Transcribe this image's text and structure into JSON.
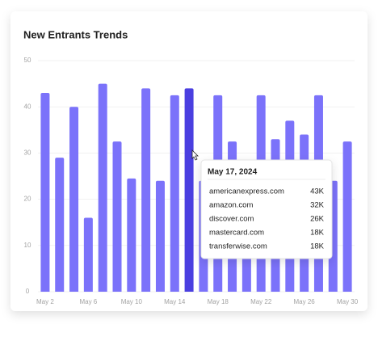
{
  "chart_data": {
    "type": "bar",
    "title": "New Entrants Trends",
    "categories": [
      "May 2",
      null,
      null,
      "May 6",
      null,
      null,
      "May 10",
      null,
      null,
      "May 14",
      null,
      null,
      "May 18",
      null,
      null,
      "May 22",
      null,
      null,
      "May 26",
      null,
      null,
      "May 30"
    ],
    "values": [
      43,
      29,
      40,
      16,
      45,
      32.5,
      24.5,
      44,
      24,
      42.5,
      44,
      24,
      42.5,
      32.5,
      28,
      42.5,
      33,
      37,
      34,
      42.5,
      24,
      32.5
    ],
    "color": "#7b72fa",
    "highlight_color": "#4a3fe0",
    "highlight_index": 10,
    "ylim": [
      0,
      50
    ],
    "yticks": [
      0,
      10,
      20,
      30,
      40,
      50
    ],
    "grid": true,
    "tooltip": {
      "title": "May 17, 2024",
      "rows": [
        {
          "label": "americanexpress.com",
          "value": "43K"
        },
        {
          "label": "amazon.com",
          "value": "32K"
        },
        {
          "label": "discover.com",
          "value": "26K"
        },
        {
          "label": "mastercard.com",
          "value": "18K"
        },
        {
          "label": "transferwise.com",
          "value": "18K"
        }
      ]
    }
  }
}
